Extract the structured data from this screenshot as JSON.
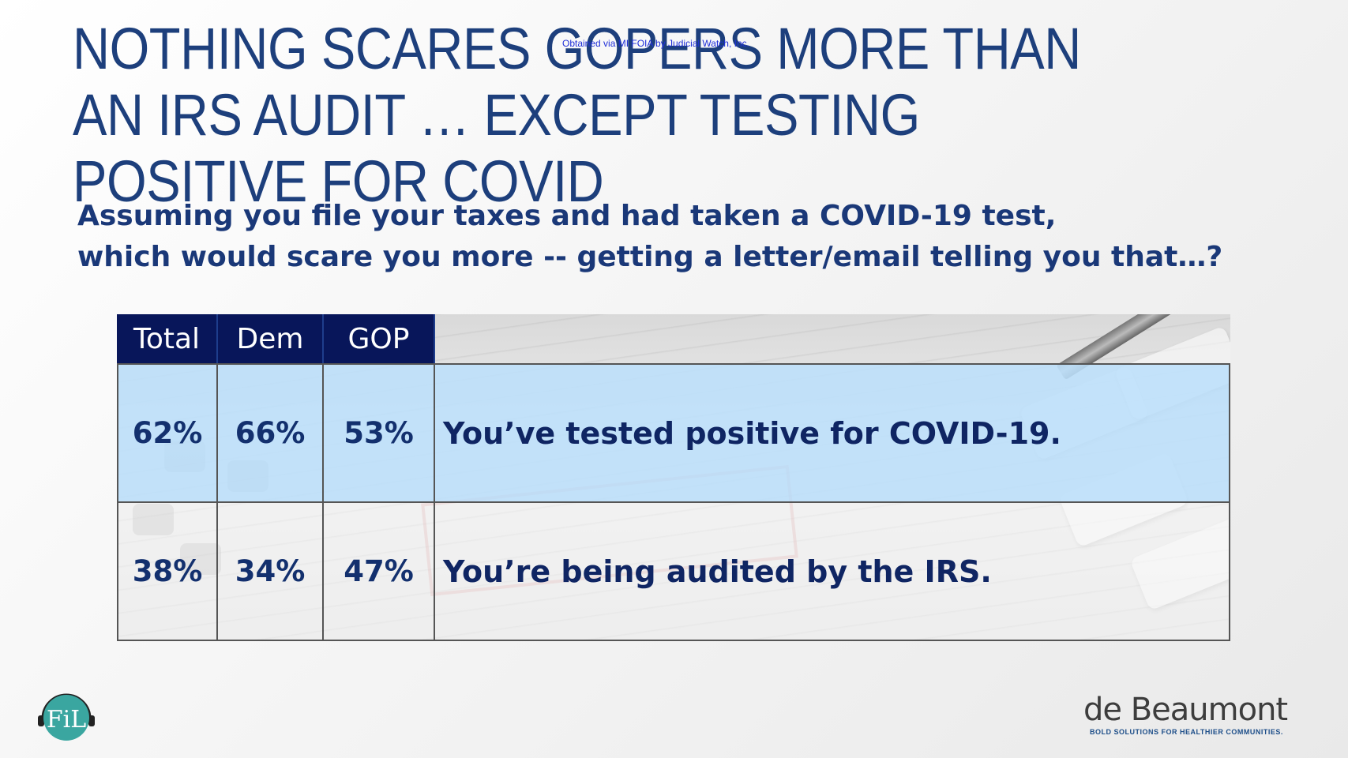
{
  "watermark": "Obtained via MI FOIA by Judicial Watch, Inc.",
  "title": "NOTHING SCARES GOPERS MORE THAN AN IRS AUDIT … EXCEPT TESTING POSITIVE FOR COVID",
  "question": {
    "line1": "Assuming you file your taxes and had taken a COVID-19 test,",
    "line2": "which would scare you more -- getting a letter/email telling you that…?"
  },
  "table": {
    "headers": [
      "Total",
      "Dem",
      "GOP"
    ],
    "rows": [
      {
        "total": "62%",
        "dem": "66%",
        "gop": "53%",
        "label": "You’ve tested positive for COVID-19."
      },
      {
        "total": "38%",
        "dem": "34%",
        "gop": "47%",
        "label": "You’re being audited by the IRS."
      }
    ]
  },
  "logos": {
    "left_logo_text": "FiL",
    "right_logo_name": "de Beaumont",
    "right_logo_tagline": "BOLD SOLUTIONS FOR HEALTHIER COMMUNITIES."
  },
  "colors": {
    "title": "#1d3f7c",
    "header_bg": "#08165a",
    "highlight_row": "#bcdffa",
    "logo_teal": "#3aa6a0"
  }
}
